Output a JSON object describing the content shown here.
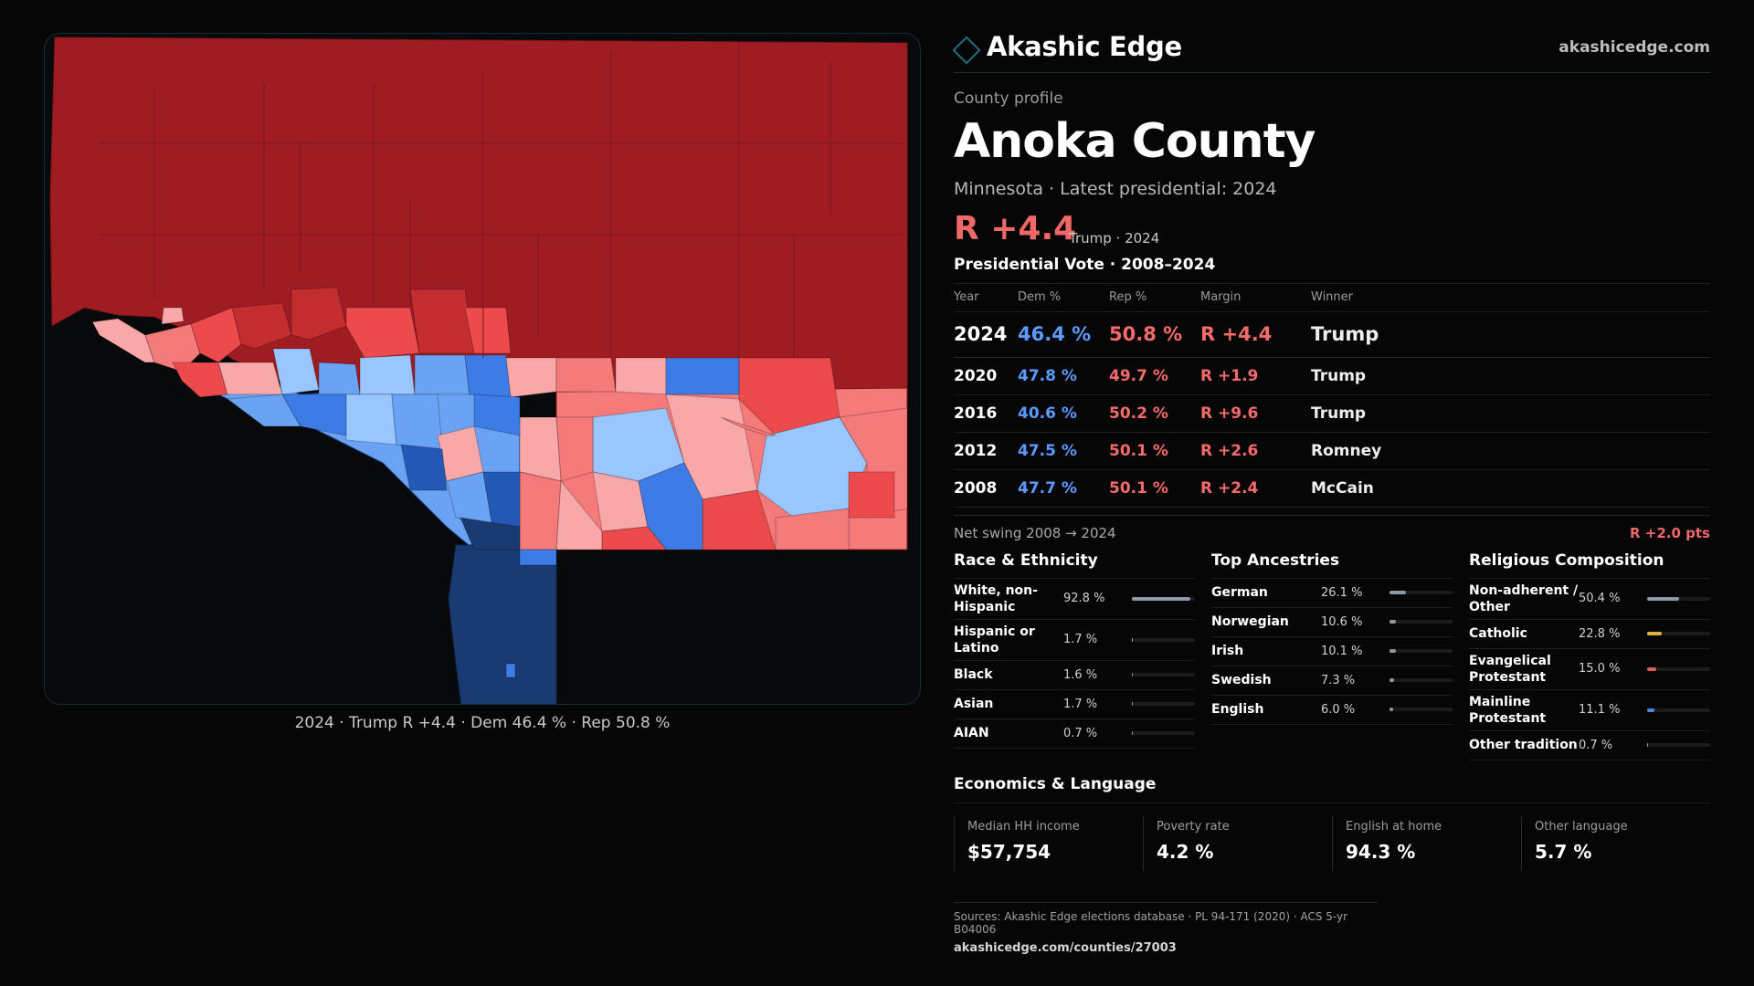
{
  "brand": {
    "name": "Akashic Edge",
    "url": "akashicedge.com"
  },
  "profile": {
    "kicker": "County profile",
    "title": "Anoka County",
    "subtitle": "Minnesota · Latest presidential: 2024",
    "margin": "R +4.4",
    "margin_note": "Trump · 2024"
  },
  "vote": {
    "title": "Presidential Vote · 2008–2024",
    "headers": {
      "year": "Year",
      "dem": "Dem %",
      "rep": "Rep %",
      "margin": "Margin",
      "winner": "Winner"
    },
    "rows": [
      {
        "year": "2024",
        "dem": "46.4 %",
        "rep": "50.8 %",
        "margin": "R +4.4",
        "winner": "Trump"
      },
      {
        "year": "2020",
        "dem": "47.8 %",
        "rep": "49.7 %",
        "margin": "R +1.9",
        "winner": "Trump"
      },
      {
        "year": "2016",
        "dem": "40.6 %",
        "rep": "50.2 %",
        "margin": "R +9.6",
        "winner": "Trump"
      },
      {
        "year": "2012",
        "dem": "47.5 %",
        "rep": "50.1 %",
        "margin": "R +2.6",
        "winner": "Romney"
      },
      {
        "year": "2008",
        "dem": "47.7 %",
        "rep": "50.1 %",
        "margin": "R +2.4",
        "winner": "McCain"
      }
    ],
    "swing_label": "Net swing 2008 → 2024",
    "swing_value": "R +2.0 pts"
  },
  "race": {
    "title": "Race & Ethnicity",
    "rows": [
      {
        "label": "White, non-Hispanic",
        "value": "92.8 %",
        "pct": 92.8,
        "color": "#8f98a6"
      },
      {
        "label": "Hispanic or Latino",
        "value": "1.7 %",
        "pct": 1.7,
        "color": "#e0a040"
      },
      {
        "label": "Black",
        "value": "1.6 %",
        "pct": 1.6,
        "color": "#6f86c8"
      },
      {
        "label": "Asian",
        "value": "1.7 %",
        "pct": 1.7,
        "color": "#3fbf8f"
      },
      {
        "label": "AIAN",
        "value": "0.7 %",
        "pct": 0.7,
        "color": "#d87a3c"
      }
    ]
  },
  "ancestry": {
    "title": "Top Ancestries",
    "rows": [
      {
        "label": "German",
        "value": "26.1 %",
        "pct": 26.1,
        "color": "#8f98a6"
      },
      {
        "label": "Norwegian",
        "value": "10.6 %",
        "pct": 10.6,
        "color": "#8f98a6"
      },
      {
        "label": "Irish",
        "value": "10.1 %",
        "pct": 10.1,
        "color": "#8f98a6"
      },
      {
        "label": "Swedish",
        "value": "7.3 %",
        "pct": 7.3,
        "color": "#8f98a6"
      },
      {
        "label": "English",
        "value": "6.0 %",
        "pct": 6.0,
        "color": "#8f98a6"
      }
    ]
  },
  "religion": {
    "title": "Religious Composition",
    "rows": [
      {
        "label": "Non-adherent / Other",
        "value": "50.4 %",
        "pct": 50.4,
        "color": "#8f98a6"
      },
      {
        "label": "Catholic",
        "value": "22.8 %",
        "pct": 22.8,
        "color": "#e3b13a"
      },
      {
        "label": "Evangelical Protestant",
        "value": "15.0 %",
        "pct": 15.0,
        "color": "#e15a5a"
      },
      {
        "label": "Mainline Protestant",
        "value": "11.1 %",
        "pct": 11.1,
        "color": "#4c86e6"
      },
      {
        "label": "Other tradition",
        "value": "0.7 %",
        "pct": 0.7,
        "color": "#8f98a6"
      }
    ]
  },
  "economics": {
    "title": "Economics & Language",
    "cards": [
      {
        "label": "Median HH income",
        "value": "$57,754"
      },
      {
        "label": "Poverty rate",
        "value": "4.2 %"
      },
      {
        "label": "English at home",
        "value": "94.3 %"
      },
      {
        "label": "Other language",
        "value": "5.7 %"
      }
    ]
  },
  "sources": {
    "line1": "Sources: Akashic Edge elections database · PL 94-171 (2020) · ACS 5-yr B04006",
    "line2": "akashicedge.com/counties/27003"
  },
  "map": {
    "caption": "2024 · Trump R +4.4 · Dem 46.4 % · Rep 50.8 %",
    "colors": {
      "safe_r": "#9e1c22",
      "likely_r": "#c42d30",
      "lean_r": "#ec4a4c",
      "tilt_r": "#f57a7a",
      "pale_r": "#f8a8a8",
      "pale_d": "#9ac6ff",
      "tilt_d": "#6aa3f3",
      "lean_d": "#3d7ce6",
      "likely_d": "#2458b6",
      "safe_d": "#1a3a72"
    }
  }
}
